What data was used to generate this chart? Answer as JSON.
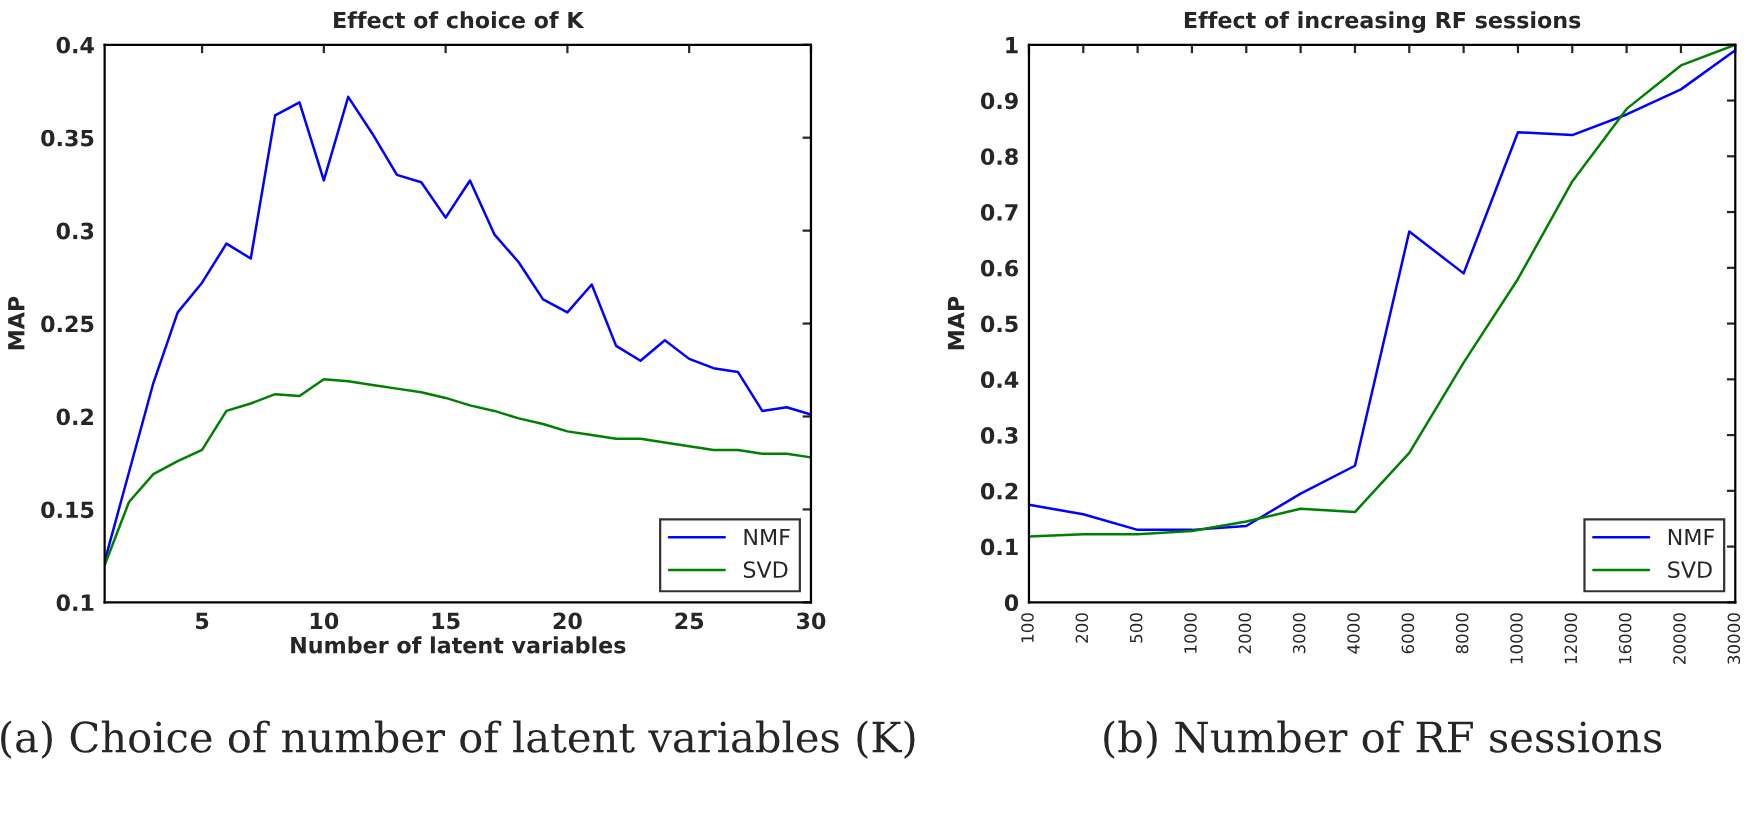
{
  "chart_data": [
    {
      "type": "line",
      "title": "Effect of choice of K",
      "xlabel": "Number of latent variables",
      "ylabel": "MAP",
      "x": [
        1,
        2,
        3,
        4,
        5,
        6,
        7,
        8,
        9,
        10,
        11,
        12,
        13,
        14,
        15,
        16,
        17,
        18,
        19,
        20,
        21,
        22,
        23,
        24,
        25,
        26,
        27,
        28,
        29,
        30
      ],
      "series": [
        {
          "name": "NMF",
          "color": "#0000ff",
          "values": [
            0.122,
            0.17,
            0.218,
            0.256,
            0.272,
            0.293,
            0.285,
            0.362,
            0.369,
            0.327,
            0.372,
            0.352,
            0.33,
            0.326,
            0.307,
            0.327,
            0.298,
            0.283,
            0.263,
            0.256,
            0.271,
            0.238,
            0.23,
            0.241,
            0.231,
            0.226,
            0.224,
            0.203,
            0.205,
            0.201
          ]
        },
        {
          "name": "SVD",
          "color": "#008000",
          "values": [
            0.12,
            0.154,
            0.169,
            0.176,
            0.182,
            0.203,
            0.207,
            0.212,
            0.211,
            0.22,
            0.219,
            0.217,
            0.215,
            0.213,
            0.21,
            0.206,
            0.203,
            0.199,
            0.196,
            0.192,
            0.19,
            0.188,
            0.188,
            0.186,
            0.184,
            0.182,
            0.182,
            0.18,
            0.18,
            0.178
          ]
        }
      ],
      "xlim": [
        1,
        30
      ],
      "xticks": [
        5,
        10,
        15,
        20,
        25,
        30
      ],
      "ylim": [
        0.1,
        0.4
      ],
      "yticks": [
        0.1,
        0.15,
        0.2,
        0.25,
        0.3,
        0.35,
        0.4
      ],
      "legend": "bottom right",
      "grid": false,
      "annotations": [
        "(a) Choice of number of latent variables (K)"
      ]
    },
    {
      "type": "line",
      "title": "Effect of increasing RF sessions",
      "ylabel": "MAP",
      "categories": [
        "100",
        "200",
        "500",
        "1000",
        "2000",
        "3000",
        "4000",
        "6000",
        "8000",
        "10000",
        "12000",
        "16000",
        "20000",
        "30000"
      ],
      "series": [
        {
          "name": "NMF",
          "color": "#0000ff",
          "values": [
            0.175,
            0.158,
            0.13,
            0.13,
            0.137,
            0.195,
            0.245,
            0.665,
            0.59,
            0.843,
            0.838,
            0.875,
            0.92,
            0.99
          ]
        },
        {
          "name": "SVD",
          "color": "#008000",
          "values": [
            0.118,
            0.122,
            0.122,
            0.128,
            0.145,
            0.168,
            0.162,
            0.268,
            0.43,
            0.58,
            0.755,
            0.885,
            0.963,
            1.0
          ]
        }
      ],
      "ylim": [
        0,
        1
      ],
      "yticks": [
        0,
        0.1,
        0.2,
        0.3,
        0.4,
        0.5,
        0.6,
        0.7,
        0.8,
        0.9,
        1
      ],
      "legend": "bottom right",
      "grid": false,
      "annotations": [
        "(b) Number of RF sessions"
      ]
    }
  ]
}
